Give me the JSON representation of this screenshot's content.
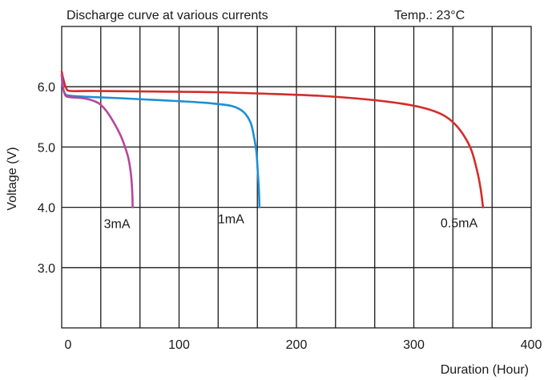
{
  "chart_data": {
    "type": "line",
    "title": "Discharge curve at various currents",
    "annotation": "Temp.: 23°C",
    "xlabel": "Duration (Hour)",
    "ylabel": "Voltage (V)",
    "xlim": [
      0,
      400
    ],
    "ylim": [
      2.0,
      7.0
    ],
    "x_ticks": [
      0,
      100,
      200,
      300,
      400
    ],
    "x_tick_labels": [
      "0",
      "100",
      "200",
      "300",
      "400"
    ],
    "x_minor_grid": [
      33.3,
      66.7,
      100,
      133.3,
      166.7,
      200,
      233.3,
      266.7,
      300,
      333.3,
      366.7
    ],
    "y_ticks": [
      3.0,
      4.0,
      5.0,
      6.0
    ],
    "y_tick_labels": [
      "3.0",
      "4.0",
      "5.0",
      "6.0"
    ],
    "grid": true,
    "series": [
      {
        "name": "3mA",
        "color": "#b5479c",
        "points": [
          [
            0,
            6.2
          ],
          [
            1,
            6.0
          ],
          [
            3,
            5.86
          ],
          [
            6,
            5.83
          ],
          [
            12,
            5.82
          ],
          [
            18,
            5.81
          ],
          [
            25,
            5.78
          ],
          [
            32,
            5.72
          ],
          [
            38,
            5.6
          ],
          [
            44,
            5.42
          ],
          [
            50,
            5.2
          ],
          [
            54,
            5.0
          ],
          [
            57,
            4.8
          ],
          [
            59,
            4.55
          ],
          [
            60,
            4.3
          ],
          [
            60.5,
            4.0
          ]
        ]
      },
      {
        "name": "1mA",
        "color": "#1e8fd4",
        "points": [
          [
            0,
            6.2
          ],
          [
            1,
            6.0
          ],
          [
            3,
            5.88
          ],
          [
            8,
            5.85
          ],
          [
            25,
            5.83
          ],
          [
            50,
            5.81
          ],
          [
            80,
            5.78
          ],
          [
            110,
            5.75
          ],
          [
            130,
            5.72
          ],
          [
            145,
            5.68
          ],
          [
            155,
            5.58
          ],
          [
            161,
            5.4
          ],
          [
            164,
            5.15
          ],
          [
            166,
            4.9
          ],
          [
            167,
            4.6
          ],
          [
            168,
            4.3
          ],
          [
            168.5,
            4.0
          ]
        ]
      },
      {
        "name": "0.5mA",
        "color": "#d42b2b",
        "points": [
          [
            0,
            6.25
          ],
          [
            1.5,
            6.12
          ],
          [
            4,
            5.97
          ],
          [
            8,
            5.93
          ],
          [
            30,
            5.93
          ],
          [
            80,
            5.92
          ],
          [
            130,
            5.91
          ],
          [
            180,
            5.88
          ],
          [
            220,
            5.85
          ],
          [
            260,
            5.79
          ],
          [
            290,
            5.72
          ],
          [
            310,
            5.64
          ],
          [
            325,
            5.53
          ],
          [
            335,
            5.38
          ],
          [
            343,
            5.18
          ],
          [
            349,
            4.95
          ],
          [
            354,
            4.6
          ],
          [
            357,
            4.3
          ],
          [
            359,
            4.0
          ]
        ]
      }
    ]
  }
}
